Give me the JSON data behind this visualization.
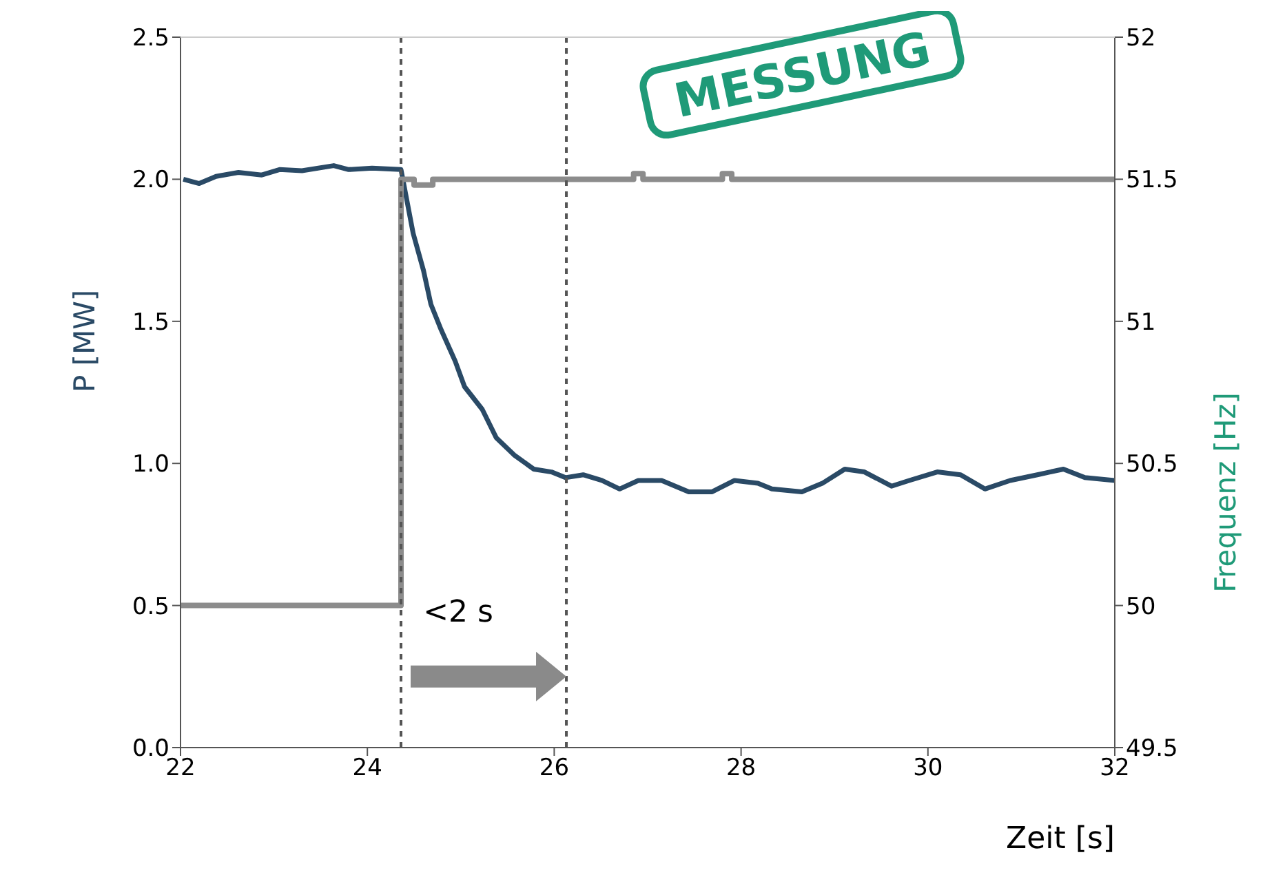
{
  "chart_data": {
    "type": "line",
    "xlabel": "Zeit [s]",
    "ylabel": "P [MW]",
    "y2label": "Frequenz [Hz]",
    "xlim": [
      22,
      32
    ],
    "xticks": [
      22,
      24,
      26,
      28,
      30,
      32
    ],
    "ylim": [
      0,
      2.5
    ],
    "yticks": [
      {
        "value": 0,
        "label": "0.0"
      },
      {
        "value": 0.5,
        "label": "0.5"
      },
      {
        "value": 1,
        "label": "1.0"
      },
      {
        "value": 1.5,
        "label": "1.5"
      },
      {
        "value": 2,
        "label": "2.0"
      },
      {
        "value": 2.5,
        "label": "2.5"
      }
    ],
    "y2lim": [
      49.5,
      52
    ],
    "y2ticks": [
      49.5,
      50,
      50.5,
      51,
      51.5,
      52
    ],
    "marker": "none",
    "line_style": "solid",
    "series": [
      {
        "color": "#2a4a66",
        "x": [
          22.03,
          22.2,
          22.38,
          22.62,
          22.87,
          23.06,
          23.3,
          23.64,
          23.8,
          24.05,
          24.36,
          24.49,
          24.6,
          24.68,
          24.79,
          24.94,
          25.04,
          25.23,
          25.38,
          25.57,
          25.78,
          25.97,
          26.12,
          26.31,
          26.51,
          26.7,
          26.9,
          27.15,
          27.44,
          27.69,
          27.93,
          28.18,
          28.33,
          28.65,
          28.87,
          29.11,
          29.32,
          29.61,
          29.8,
          30.1,
          30.35,
          30.61,
          30.88,
          31.17,
          31.45,
          31.68,
          32
        ],
        "values": [
          2.0,
          1.985,
          2.01,
          2.024,
          2.015,
          2.034,
          2.03,
          2.048,
          2.034,
          2.039,
          2.034,
          1.81,
          1.68,
          1.56,
          1.47,
          1.36,
          1.27,
          1.19,
          1.09,
          1.03,
          0.98,
          0.97,
          0.95,
          0.96,
          0.94,
          0.91,
          0.94,
          0.94,
          0.9,
          0.9,
          0.94,
          0.93,
          0.91,
          0.9,
          0.93,
          0.98,
          0.97,
          0.92,
          0.94,
          0.97,
          0.96,
          0.91,
          0.94,
          0.96,
          0.98,
          0.95,
          0.94
        ]
      },
      {
        "type": "step",
        "axis": "y2",
        "color": "#8c8c8c",
        "x": [
          22,
          24.36,
          24.5,
          24.7,
          26.85,
          26.95,
          27.8,
          27.9,
          32
        ],
        "values": [
          50,
          51.5,
          51.48,
          51.5,
          51.52,
          51.5,
          51.52,
          51.5,
          51.5
        ]
      }
    ],
    "ref_lines": [
      {
        "axis": "x",
        "value": 24.36,
        "color": "#555555",
        "line_style": "dashed"
      },
      {
        "axis": "x",
        "value": 26.13,
        "color": "#555555",
        "line_style": "dashed"
      }
    ],
    "annotations": [
      "<2 s",
      "MESSUNG"
    ]
  }
}
